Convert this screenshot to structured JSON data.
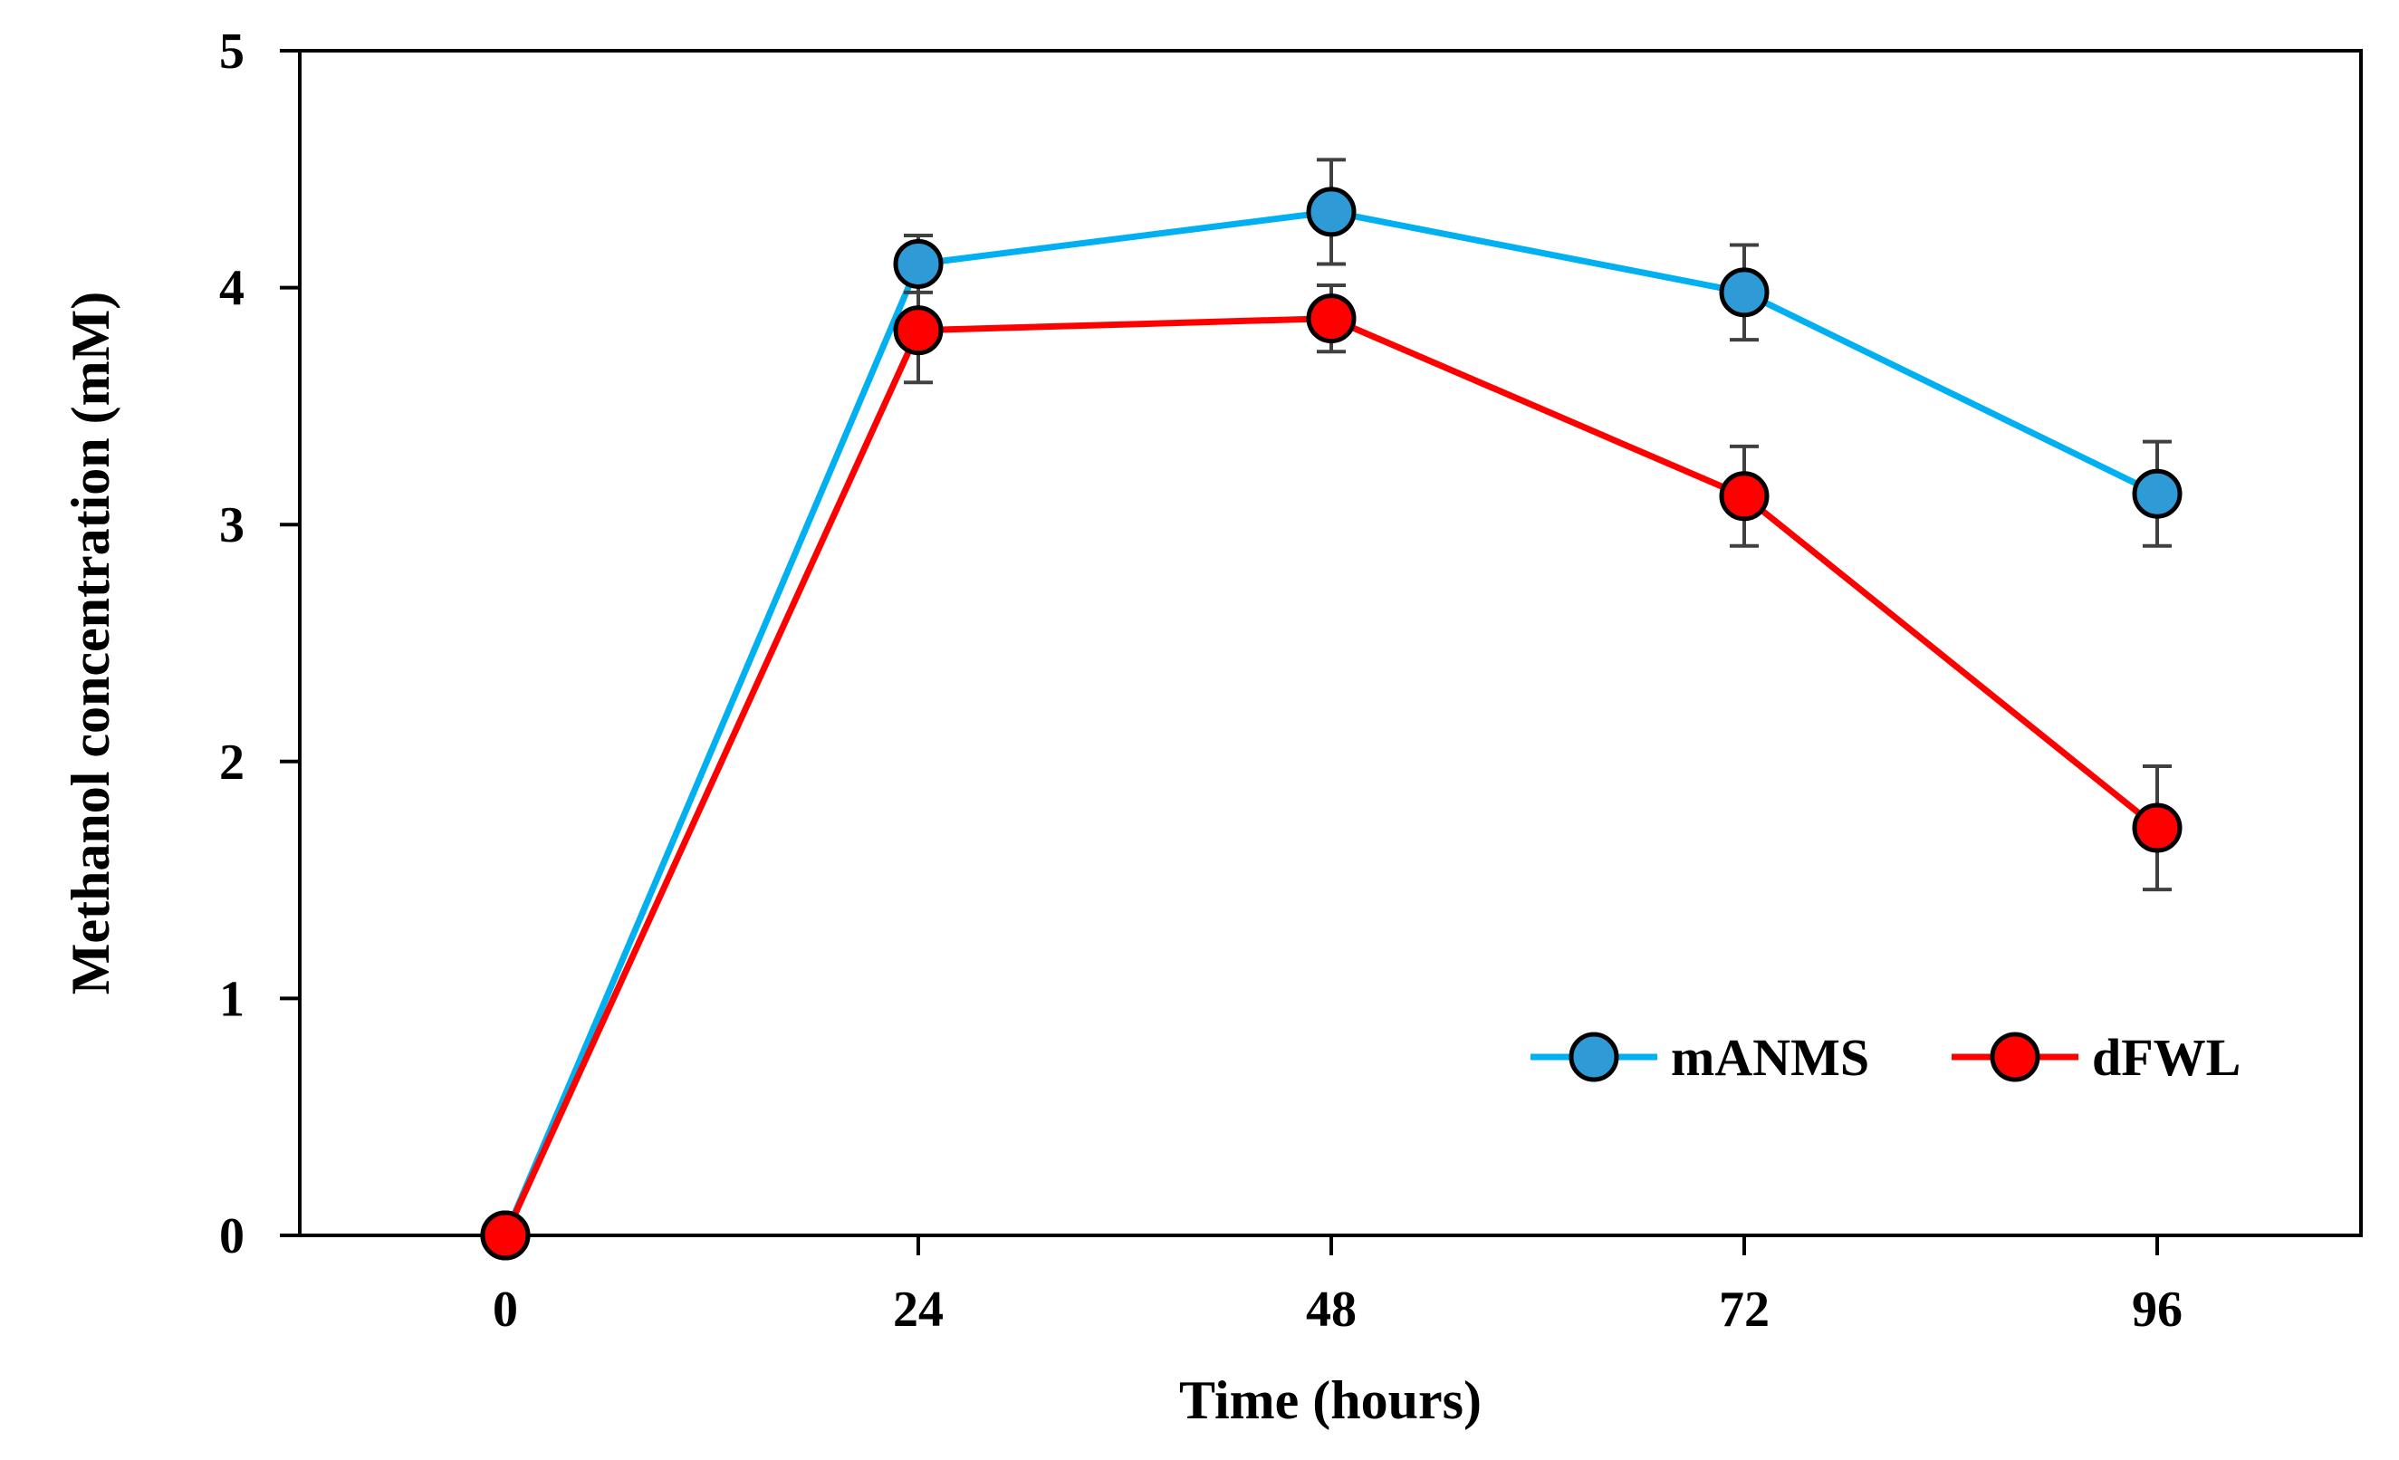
{
  "chart_data": {
    "type": "line",
    "title": "",
    "xlabel": "Time (hours)",
    "ylabel": "Methanol concentration (mM)",
    "x": [
      0,
      24,
      48,
      72,
      96
    ],
    "x_tick_labels": [
      "0",
      "24",
      "48",
      "72",
      "96"
    ],
    "y_tick_labels": [
      "0",
      "1",
      "2",
      "3",
      "4",
      "5"
    ],
    "ylim": [
      0,
      5
    ],
    "grid": false,
    "legend_position": "bottom-right",
    "series": [
      {
        "name": "mANMS",
        "color": "#00b0f0",
        "marker_color": "#2e9bd6",
        "values": [
          0,
          4.1,
          4.32,
          3.98,
          3.13
        ],
        "errors": [
          0,
          0.12,
          0.22,
          0.2,
          0.22
        ]
      },
      {
        "name": "dFWL",
        "color": "#ff0000",
        "marker_color": "#ff0000",
        "values": [
          0,
          3.82,
          3.87,
          3.12,
          1.72
        ],
        "errors": [
          0,
          0.22,
          0.14,
          0.21,
          0.26
        ]
      }
    ]
  }
}
